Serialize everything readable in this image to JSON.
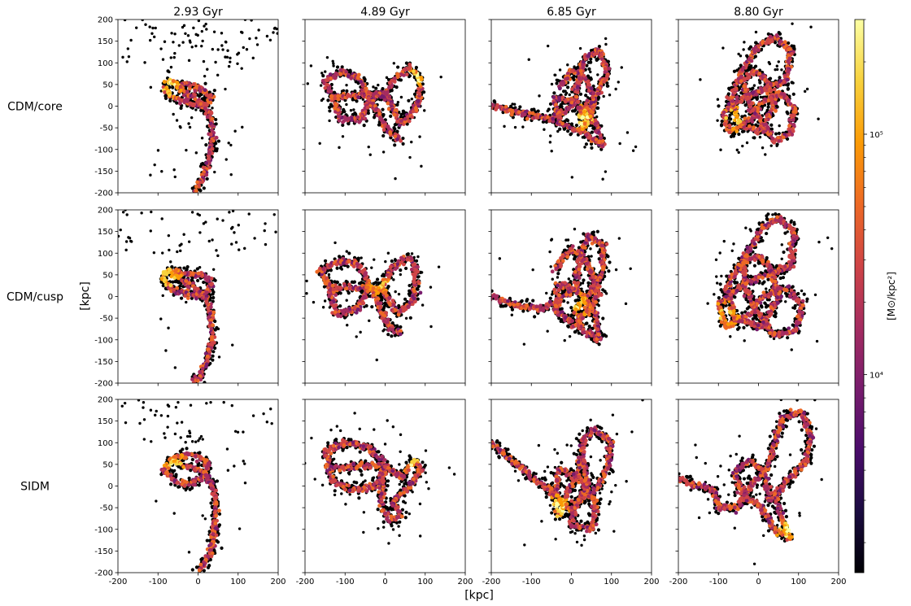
{
  "chart_data": {
    "type": "heatmap",
    "subtype": "hexbin-stellar-stream-grid",
    "columns": [
      "2.93 Gyr",
      "4.89 Gyr",
      "6.85 Gyr",
      "8.80 Gyr"
    ],
    "rows": [
      "CDM/core",
      "CDM/cusp",
      "SIDM"
    ],
    "xlabel": "[kpc]",
    "ylabel": "[kpc]",
    "xlim": [
      -200,
      200
    ],
    "ylim": [
      -200,
      200
    ],
    "xticks": [
      -200,
      -100,
      0,
      100,
      200
    ],
    "yticks": [
      -200,
      -150,
      -100,
      -50,
      0,
      50,
      100,
      150,
      200
    ],
    "grid": false,
    "colorbar": {
      "label": "[M⊙/kpc²]",
      "scale": "log",
      "range": [
        1500,
        300000
      ],
      "ticks": [
        {
          "value": 10000,
          "label": "10⁴"
        },
        {
          "value": 100000,
          "label": "10⁵"
        }
      ],
      "colormap": [
        "#000004",
        "#1b0c41",
        "#4a0c6b",
        "#781c6d",
        "#a52c60",
        "#cf4446",
        "#ed6925",
        "#fb9b06",
        "#f7d13d",
        "#fcffa4"
      ]
    },
    "panels": [
      {
        "row": 0,
        "col": 0,
        "stream": [
          [
            -72,
            58
          ],
          [
            -85,
            40
          ],
          [
            -60,
            20
          ],
          [
            -25,
            8
          ],
          [
            10,
            0
          ],
          [
            35,
            20
          ],
          [
            10,
            38
          ],
          [
            -30,
            48
          ],
          [
            -72,
            58
          ],
          [
            15,
            2
          ],
          [
            35,
            -30
          ],
          [
            35,
            -80
          ],
          [
            25,
            -130
          ],
          [
            10,
            -170
          ],
          [
            -10,
            -200
          ]
        ],
        "hot": [
          -70,
          45
        ]
      },
      {
        "row": 0,
        "col": 1,
        "stream": [
          [
            -130,
            20
          ],
          [
            -150,
            60
          ],
          [
            -100,
            80
          ],
          [
            -60,
            60
          ],
          [
            -40,
            10
          ],
          [
            -60,
            -30
          ],
          [
            -110,
            -30
          ],
          [
            -130,
            20
          ],
          [
            0,
            30
          ],
          [
            40,
            -40
          ],
          [
            80,
            0
          ],
          [
            90,
            60
          ],
          [
            60,
            90
          ],
          [
            20,
            60
          ],
          [
            0,
            30
          ],
          [
            -40,
            20
          ],
          [
            10,
            -60
          ],
          [
            40,
            -80
          ]
        ],
        "hot": [
          80,
          70
        ]
      },
      {
        "row": 0,
        "col": 2,
        "stream": [
          [
            -200,
            0
          ],
          [
            -150,
            -10
          ],
          [
            -100,
            -20
          ],
          [
            -50,
            -30
          ],
          [
            0,
            0
          ],
          [
            20,
            60
          ],
          [
            30,
            110
          ],
          [
            70,
            130
          ],
          [
            90,
            80
          ],
          [
            60,
            20
          ],
          [
            20,
            -20
          ],
          [
            40,
            -70
          ],
          [
            80,
            -90
          ],
          [
            60,
            -40
          ],
          [
            10,
            10
          ],
          [
            -40,
            20
          ],
          [
            -30,
            -40
          ],
          [
            20,
            -60
          ],
          [
            60,
            0
          ],
          [
            40,
            60
          ],
          [
            0,
            80
          ],
          [
            -30,
            40
          ]
        ],
        "hot": [
          30,
          -30
        ]
      },
      {
        "row": 0,
        "col": 3,
        "stream": [
          [
            0,
            140
          ],
          [
            40,
            160
          ],
          [
            80,
            130
          ],
          [
            70,
            60
          ],
          [
            20,
            40
          ],
          [
            -40,
            20
          ],
          [
            -90,
            -20
          ],
          [
            -70,
            -60
          ],
          [
            -20,
            -30
          ],
          [
            10,
            10
          ],
          [
            60,
            30
          ],
          [
            90,
            -10
          ],
          [
            80,
            -60
          ],
          [
            40,
            -80
          ],
          [
            10,
            -40
          ],
          [
            -20,
            0
          ],
          [
            -40,
            60
          ],
          [
            -10,
            80
          ],
          [
            20,
            60
          ],
          [
            40,
            0
          ],
          [
            0,
            -60
          ],
          [
            -50,
            -40
          ],
          [
            -70,
            20
          ],
          [
            -30,
            100
          ],
          [
            0,
            140
          ]
        ],
        "hot": [
          -60,
          -30
        ]
      },
      {
        "row": 1,
        "col": 0,
        "stream": [
          [
            -75,
            60
          ],
          [
            -90,
            40
          ],
          [
            -60,
            15
          ],
          [
            -20,
            5
          ],
          [
            15,
            5
          ],
          [
            35,
            30
          ],
          [
            10,
            50
          ],
          [
            -35,
            55
          ],
          [
            -75,
            60
          ],
          [
            15,
            5
          ],
          [
            30,
            -30
          ],
          [
            35,
            -90
          ],
          [
            25,
            -140
          ],
          [
            5,
            -180
          ],
          [
            -15,
            -200
          ]
        ],
        "hot": [
          -75,
          45
        ]
      },
      {
        "row": 1,
        "col": 1,
        "stream": [
          [
            -140,
            20
          ],
          [
            -160,
            60
          ],
          [
            -110,
            85
          ],
          [
            -60,
            70
          ],
          [
            -40,
            20
          ],
          [
            -70,
            -30
          ],
          [
            -120,
            -40
          ],
          [
            -140,
            20
          ],
          [
            -10,
            20
          ],
          [
            30,
            -40
          ],
          [
            70,
            -10
          ],
          [
            80,
            60
          ],
          [
            60,
            90
          ],
          [
            20,
            70
          ],
          [
            -10,
            20
          ],
          [
            -30,
            10
          ],
          [
            10,
            -70
          ],
          [
            40,
            -90
          ]
        ],
        "hot": [
          -20,
          30
        ]
      },
      {
        "row": 1,
        "col": 2,
        "stream": [
          [
            -200,
            0
          ],
          [
            -140,
            -20
          ],
          [
            -80,
            -30
          ],
          [
            -30,
            -10
          ],
          [
            10,
            20
          ],
          [
            20,
            80
          ],
          [
            40,
            140
          ],
          [
            80,
            120
          ],
          [
            80,
            60
          ],
          [
            50,
            10
          ],
          [
            10,
            -30
          ],
          [
            30,
            -80
          ],
          [
            70,
            -100
          ],
          [
            60,
            -40
          ],
          [
            20,
            10
          ],
          [
            -30,
            30
          ],
          [
            -40,
            -30
          ],
          [
            10,
            -70
          ],
          [
            70,
            10
          ],
          [
            40,
            80
          ],
          [
            0,
            110
          ],
          [
            -40,
            60
          ]
        ],
        "hot": [
          20,
          -20
        ]
      },
      {
        "row": 1,
        "col": 3,
        "stream": [
          [
            10,
            160
          ],
          [
            50,
            180
          ],
          [
            90,
            150
          ],
          [
            80,
            70
          ],
          [
            20,
            50
          ],
          [
            -40,
            30
          ],
          [
            -100,
            -20
          ],
          [
            -80,
            -70
          ],
          [
            -20,
            -40
          ],
          [
            10,
            0
          ],
          [
            70,
            20
          ],
          [
            110,
            -20
          ],
          [
            90,
            -80
          ],
          [
            40,
            -90
          ],
          [
            0,
            -40
          ],
          [
            -30,
            10
          ],
          [
            -40,
            80
          ],
          [
            0,
            90
          ],
          [
            30,
            70
          ],
          [
            50,
            0
          ],
          [
            10,
            -70
          ],
          [
            -60,
            -50
          ],
          [
            -80,
            20
          ],
          [
            -20,
            110
          ],
          [
            10,
            160
          ]
        ],
        "hot": [
          -80,
          -40
        ]
      },
      {
        "row": 2,
        "col": 0,
        "stream": [
          [
            -70,
            60
          ],
          [
            -85,
            35
          ],
          [
            -55,
            10
          ],
          [
            -15,
            5
          ],
          [
            20,
            25
          ],
          [
            25,
            55
          ],
          [
            -10,
            70
          ],
          [
            -50,
            70
          ],
          [
            -70,
            60
          ],
          [
            20,
            30
          ],
          [
            40,
            -10
          ],
          [
            45,
            -60
          ],
          [
            40,
            -110
          ],
          [
            30,
            -160
          ],
          [
            0,
            -200
          ]
        ],
        "hot": [
          -60,
          50
        ]
      },
      {
        "row": 2,
        "col": 1,
        "stream": [
          [
            -140,
            40
          ],
          [
            -150,
            80
          ],
          [
            -100,
            100
          ],
          [
            -40,
            90
          ],
          [
            0,
            50
          ],
          [
            -20,
            0
          ],
          [
            -80,
            -10
          ],
          [
            -130,
            10
          ],
          [
            -140,
            40
          ],
          [
            0,
            50
          ],
          [
            40,
            20
          ],
          [
            70,
            60
          ],
          [
            90,
            40
          ],
          [
            60,
            0
          ],
          [
            20,
            -40
          ],
          [
            40,
            -70
          ],
          [
            10,
            -80
          ],
          [
            -10,
            -40
          ],
          [
            0,
            50
          ]
        ],
        "hot": [
          60,
          60
        ]
      },
      {
        "row": 2,
        "col": 2,
        "stream": [
          [
            -200,
            100
          ],
          [
            -150,
            60
          ],
          [
            -100,
            20
          ],
          [
            -50,
            -10
          ],
          [
            -30,
            -70
          ],
          [
            -10,
            -20
          ],
          [
            20,
            40
          ],
          [
            30,
            110
          ],
          [
            60,
            130
          ],
          [
            100,
            100
          ],
          [
            90,
            40
          ],
          [
            60,
            -10
          ],
          [
            10,
            -40
          ],
          [
            0,
            -90
          ],
          [
            50,
            -100
          ],
          [
            60,
            -40
          ],
          [
            20,
            20
          ],
          [
            -30,
            40
          ],
          [
            -40,
            -20
          ],
          [
            0,
            -60
          ],
          [
            40,
            0
          ],
          [
            30,
            60
          ]
        ],
        "hot": [
          -30,
          -50
        ]
      },
      {
        "row": 2,
        "col": 3,
        "stream": [
          [
            -200,
            20
          ],
          [
            -150,
            0
          ],
          [
            -110,
            -10
          ],
          [
            -100,
            -50
          ],
          [
            -50,
            -50
          ],
          [
            -20,
            0
          ],
          [
            20,
            40
          ],
          [
            40,
            100
          ],
          [
            60,
            160
          ],
          [
            110,
            170
          ],
          [
            130,
            120
          ],
          [
            120,
            60
          ],
          [
            80,
            20
          ],
          [
            40,
            -20
          ],
          [
            60,
            -80
          ],
          [
            80,
            -120
          ],
          [
            40,
            -100
          ],
          [
            10,
            -50
          ],
          [
            -40,
            -20
          ],
          [
            -60,
            30
          ],
          [
            -20,
            60
          ],
          [
            20,
            20
          ],
          [
            30,
            -40
          ]
        ],
        "hot": [
          70,
          -100
        ]
      }
    ]
  }
}
